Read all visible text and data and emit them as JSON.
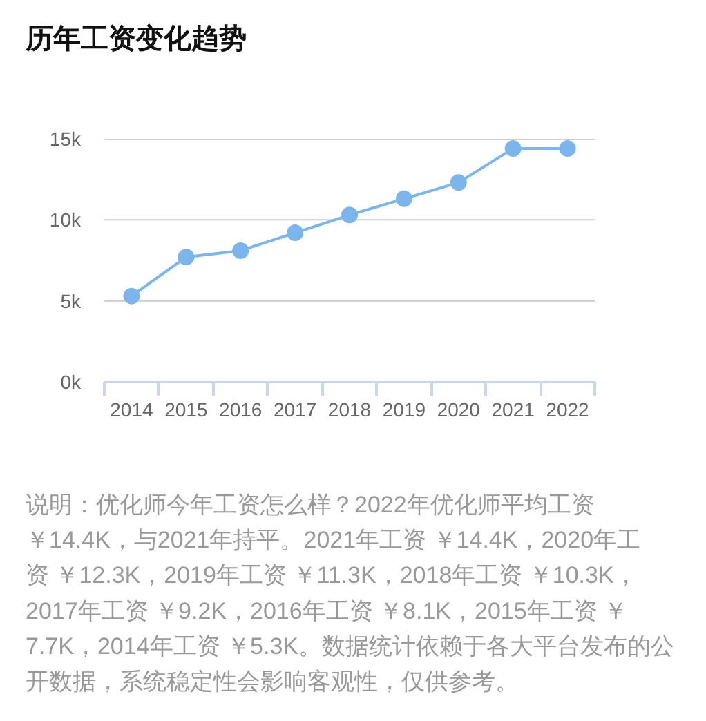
{
  "chart_data": {
    "type": "line",
    "title": "历年工资变化趋势",
    "categories": [
      "2014",
      "2015",
      "2016",
      "2017",
      "2018",
      "2019",
      "2020",
      "2021",
      "2022"
    ],
    "series": [
      {
        "color": "#7cb5ec",
        "values": [
          5300,
          7700,
          8100,
          9200,
          10300,
          11300,
          12300,
          14400,
          14400
        ]
      }
    ],
    "ylim": [
      0,
      15000
    ],
    "yticks": [
      {
        "value": 0,
        "label": "0k"
      },
      {
        "value": 5000,
        "label": "5k"
      },
      {
        "value": 10000,
        "label": "10k"
      },
      {
        "value": 15000,
        "label": "15k"
      }
    ],
    "grid": "y",
    "marker": "circle",
    "line_style": "solid",
    "annotations": [
      "说明：优化师今年工资怎么样？2022年优化师平均工资￥14.4K，与2021年持平。2021年工资 ￥14.4K，2020年工资 ￥12.3K，2019年工资 ￥11.3K，2018年工资 ￥10.3K，2017年工资 ￥9.2K，2016年工资 ￥8.1K，2015年工资 ￥7.7K，2014年工资 ￥5.3K。数据统计依赖于各大平台发布的公开数据，系统稳定性会影响客观性，仅供参考。"
    ]
  }
}
